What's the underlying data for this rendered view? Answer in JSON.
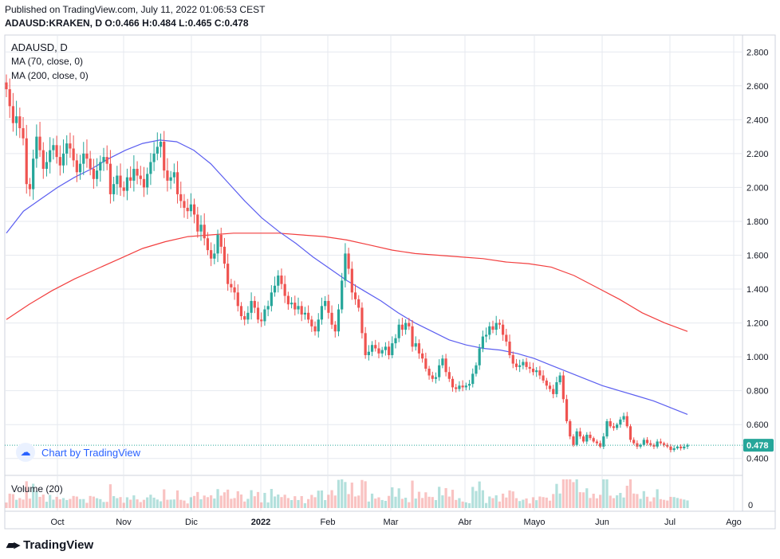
{
  "header": {
    "published": "Published on TradingView.com, July 11, 2022 01:06:53 CEST",
    "symbol_line": "ADAUSD:KRAKEN, D",
    "o_label": "O:",
    "o_value": "0.466",
    "h_label": "H:",
    "h_value": "0.484",
    "l_label": "L:",
    "l_value": "0.465",
    "c_label": "C:",
    "c_value": "0.478"
  },
  "legend": {
    "symbol": "ADAUSD, D",
    "ma70": "MA (70, close, 0)",
    "ma200": "MA (200, close, 0)",
    "volume": "Volume (20)"
  },
  "watermark": "Chart by TradingView",
  "brand": "TradingView",
  "colors": {
    "up": "#26a69a",
    "down": "#ef5350",
    "ma70": "#5b5ef0",
    "ma200": "#f23f3f",
    "price_line": "#26a69a",
    "grid": "#e6e9ef"
  },
  "chart_data": {
    "type": "candlestick",
    "title": "ADAUSD, D",
    "y_ticks": [
      "2.800",
      "2.600",
      "2.400",
      "2.200",
      "2.000",
      "1.800",
      "1.600",
      "1.400",
      "1.200",
      "1.000",
      "0.800",
      "0.600",
      "0.400"
    ],
    "x_ticks": [
      "Oct",
      "Nov",
      "Dic",
      "2022",
      "Feb",
      "Mar",
      "Abr",
      "Mayo",
      "Jun",
      "Jul",
      "Ago"
    ],
    "volume_tick": "0",
    "ylim": [
      0.3,
      2.9
    ],
    "last_price": "0.478",
    "date_range": [
      "2021-09-12",
      "2022-07-10"
    ],
    "price_path_daily": [
      2.58,
      2.48,
      2.38,
      2.42,
      2.35,
      2.29,
      2.02,
      1.99,
      2.17,
      2.3,
      2.22,
      2.11,
      2.15,
      2.22,
      2.25,
      2.18,
      2.13,
      2.2,
      2.26,
      2.23,
      2.16,
      2.09,
      2.14,
      2.2,
      2.17,
      2.11,
      2.05,
      2.1,
      2.15,
      2.18,
      2.14,
      1.96,
      2.02,
      2.07,
      2.0,
      1.98,
      2.06,
      2.04,
      2.11,
      2.07,
      2.05,
      2.0,
      2.08,
      2.15,
      2.2,
      2.24,
      2.27,
      2.1,
      2.04,
      2.06,
      2.09,
      1.96,
      1.92,
      1.88,
      1.86,
      1.9,
      1.84,
      1.74,
      1.78,
      1.7,
      1.63,
      1.58,
      1.61,
      1.72,
      1.65,
      1.55,
      1.43,
      1.41,
      1.38,
      1.3,
      1.24,
      1.22,
      1.26,
      1.33,
      1.29,
      1.22,
      1.21,
      1.28,
      1.3,
      1.38,
      1.42,
      1.48,
      1.43,
      1.36,
      1.31,
      1.32,
      1.28,
      1.3,
      1.25,
      1.26,
      1.22,
      1.18,
      1.15,
      1.22,
      1.3,
      1.33,
      1.26,
      1.19,
      1.15,
      1.28,
      1.45,
      1.61,
      1.52,
      1.38,
      1.34,
      1.29,
      1.14,
      1.01,
      1.03,
      1.07,
      1.05,
      1.02,
      1.04,
      1.06,
      1.01,
      1.08,
      1.11,
      1.19,
      1.16,
      1.2,
      1.18,
      1.06,
      1.08,
      1.02,
      0.99,
      0.93,
      0.89,
      0.87,
      0.88,
      0.95,
      0.99,
      0.91,
      0.87,
      0.82,
      0.81,
      0.83,
      0.82,
      0.83,
      0.84,
      0.9,
      0.95,
      1.05,
      1.12,
      1.13,
      1.18,
      1.16,
      1.2,
      1.19,
      1.13,
      1.09,
      1.01,
      0.96,
      0.94,
      0.95,
      0.97,
      0.94,
      0.93,
      0.91,
      0.92,
      0.89,
      0.86,
      0.83,
      0.81,
      0.78,
      0.85,
      0.89,
      0.75,
      0.62,
      0.53,
      0.48,
      0.56,
      0.53,
      0.5,
      0.54,
      0.52,
      0.5,
      0.49,
      0.47,
      0.53,
      0.62,
      0.59,
      0.58,
      0.6,
      0.63,
      0.65,
      0.59,
      0.51,
      0.49,
      0.47,
      0.48,
      0.51,
      0.49,
      0.48,
      0.47,
      0.5,
      0.49,
      0.48,
      0.47,
      0.45,
      0.46,
      0.47,
      0.46,
      0.47,
      0.48
    ],
    "ma70": {
      "name": "MA (70, close, 0)",
      "path_weekly": [
        1.73,
        1.86,
        1.93,
        2.0,
        2.06,
        2.11,
        2.17,
        2.22,
        2.26,
        2.28,
        2.27,
        2.22,
        2.14,
        2.03,
        1.92,
        1.82,
        1.74,
        1.67,
        1.59,
        1.52,
        1.45,
        1.39,
        1.33,
        1.26,
        1.2,
        1.15,
        1.1,
        1.07,
        1.05,
        1.04,
        1.02,
        0.99,
        0.95,
        0.91,
        0.87,
        0.83,
        0.8,
        0.77,
        0.74,
        0.7,
        0.66
      ]
    },
    "ma200": {
      "name": "MA (200, close, 0)",
      "path_weekly": [
        1.22,
        1.31,
        1.39,
        1.46,
        1.52,
        1.58,
        1.64,
        1.68,
        1.71,
        1.72,
        1.73,
        1.73,
        1.73,
        1.72,
        1.71,
        1.69,
        1.66,
        1.63,
        1.61,
        1.6,
        1.59,
        1.58,
        1.56,
        1.55,
        1.53,
        1.48,
        1.41,
        1.34,
        1.26,
        1.2,
        1.15
      ]
    }
  }
}
